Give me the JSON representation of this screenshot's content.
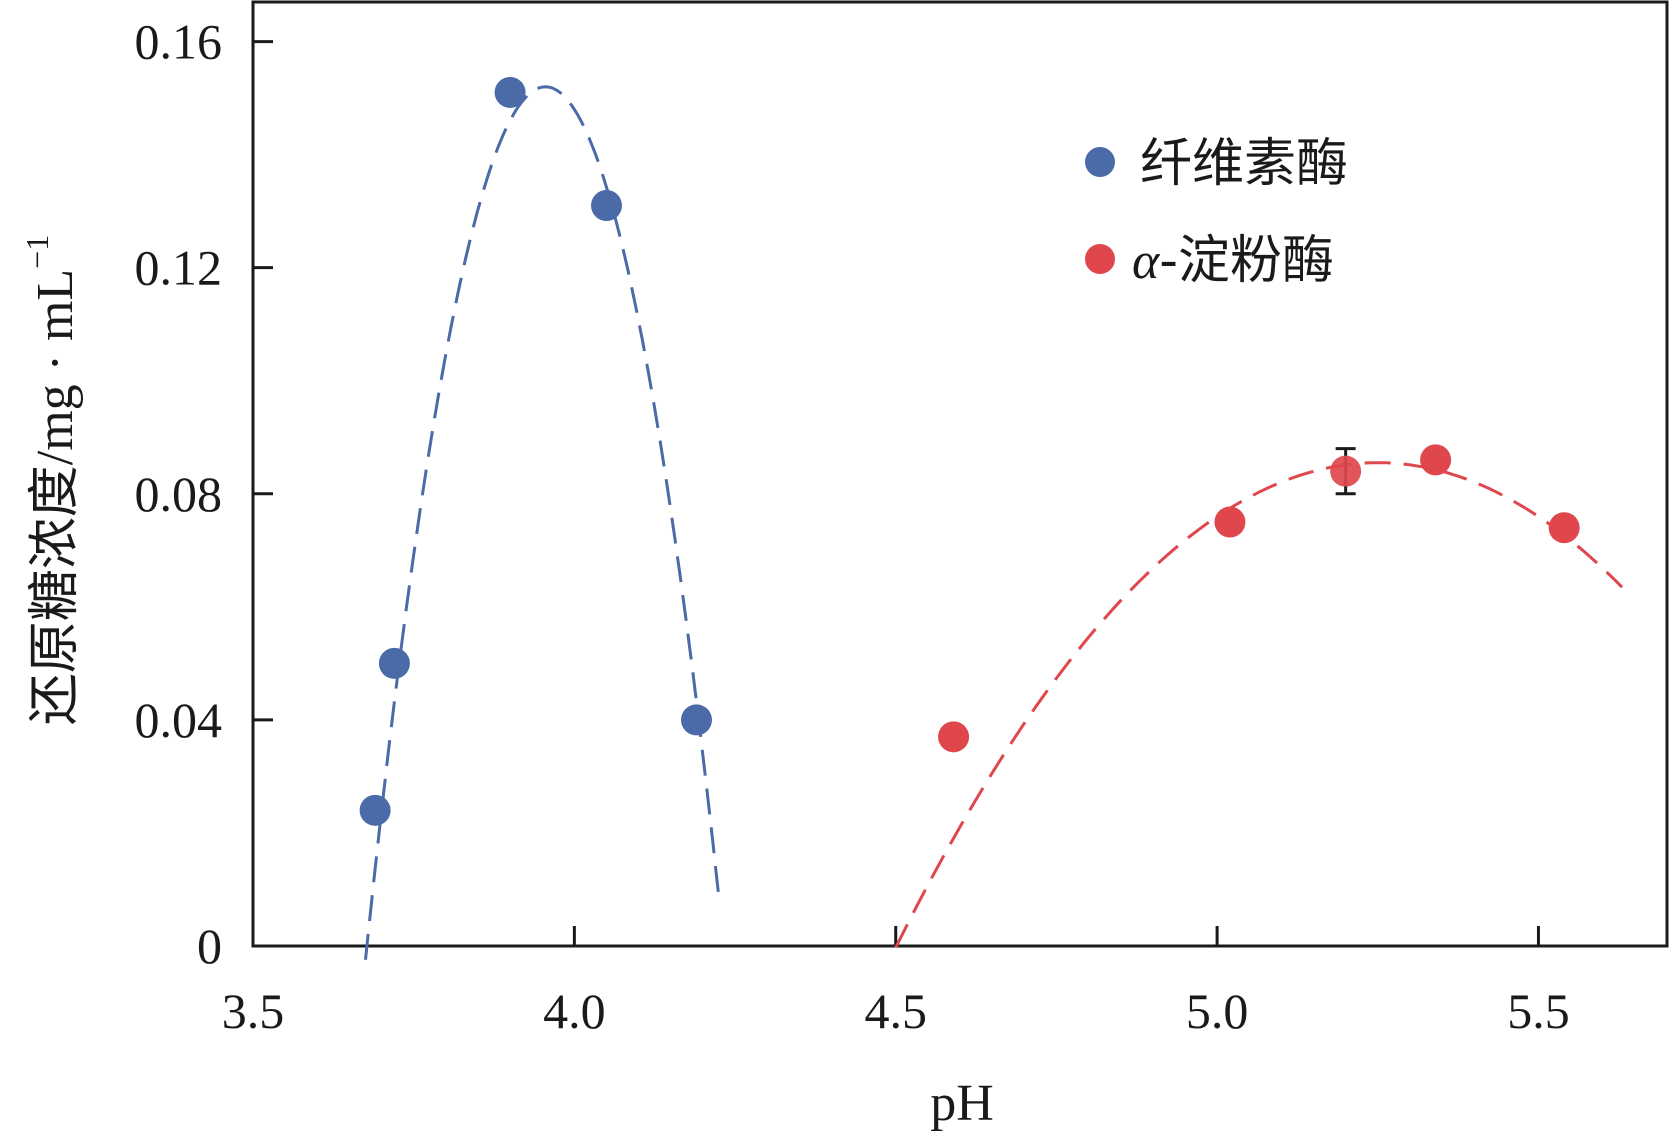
{
  "chart_data": {
    "type": "scatter",
    "xlabel": "pH",
    "ylabel": "还原糖浓度/mg · mL",
    "ylabel_sup": "−1",
    "xlim": [
      3.5,
      5.7
    ],
    "ylim": [
      0,
      0.167
    ],
    "x_ticks": [
      {
        "value": 3.5,
        "label": "3.5"
      },
      {
        "value": 4.0,
        "label": "4.0"
      },
      {
        "value": 4.5,
        "label": "4.5"
      },
      {
        "value": 5.0,
        "label": "5.0"
      },
      {
        "value": 5.5,
        "label": "5.5"
      }
    ],
    "y_ticks": [
      {
        "value": 0,
        "label": "0"
      },
      {
        "value": 0.04,
        "label": "0.04"
      },
      {
        "value": 0.08,
        "label": "0.08"
      },
      {
        "value": 0.12,
        "label": "0.12"
      },
      {
        "value": 0.16,
        "label": "0.16"
      }
    ],
    "grid": false,
    "legend_position": "top-right",
    "series": [
      {
        "name": "纤维素酶",
        "color": "#4a6aa8",
        "points": [
          {
            "x": 3.69,
            "y": 0.024
          },
          {
            "x": 3.72,
            "y": 0.05
          },
          {
            "x": 3.9,
            "y": 0.151
          },
          {
            "x": 4.05,
            "y": 0.131
          },
          {
            "x": 4.19,
            "y": 0.04
          }
        ],
        "fit": {
          "style": "dashed",
          "vertex_x": 3.955,
          "vertex_y": 0.152,
          "curvature": 1.97,
          "x_from": 3.675,
          "x_to": 4.225
        }
      },
      {
        "name": "-淀粉酶",
        "name_prefix": "α",
        "color": "#e0474c",
        "points": [
          {
            "x": 4.59,
            "y": 0.037
          },
          {
            "x": 5.02,
            "y": 0.075
          },
          {
            "x": 5.2,
            "y": 0.084,
            "error": 0.004
          },
          {
            "x": 5.34,
            "y": 0.086
          },
          {
            "x": 5.54,
            "y": 0.074
          }
        ],
        "fit": {
          "style": "dashed",
          "vertex_x": 5.25,
          "vertex_y": 0.0855,
          "curvature": 0.1525,
          "x_from": 4.5,
          "x_to": 5.63
        }
      }
    ]
  }
}
